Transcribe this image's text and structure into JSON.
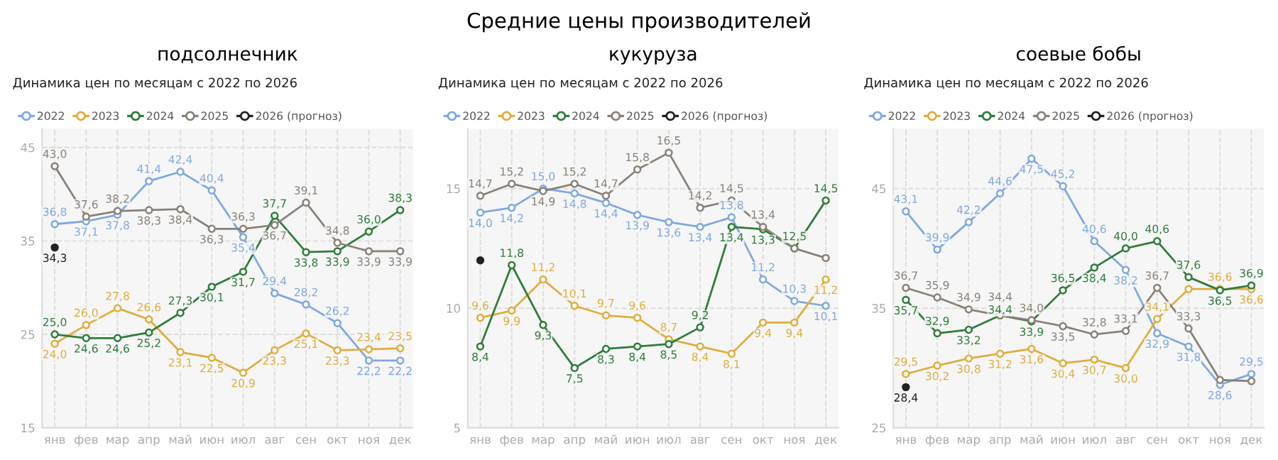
{
  "chart_data": [
    {
      "type": "line",
      "title": "подсолнечник",
      "subtitle": "Динамика цен по месяцам с 2022 по 2026",
      "annotations": [
        "Средние цены производителей"
      ],
      "categories": [
        "янв",
        "фев",
        "мар",
        "апр",
        "май",
        "июн",
        "июл",
        "авг",
        "сен",
        "окт",
        "ноя",
        "дек"
      ],
      "ylim": [
        15,
        47
      ],
      "yticks": [
        15,
        25,
        35,
        45
      ],
      "grid": true,
      "legend": "top left",
      "marker": "circle",
      "line_style": "solid",
      "series": [
        {
          "name": "2022",
          "color": "#7fa9e0",
          "values": [
            36.8,
            37.1,
            37.8,
            41.4,
            42.4,
            40.4,
            35.4,
            29.4,
            28.2,
            26.2,
            22.2,
            22.2
          ],
          "value_labels": [
            "36,8",
            "37,1",
            "37,8",
            "41,4",
            "42,4",
            "40,4",
            "35,4",
            "29,4",
            "28,2",
            "26,2",
            "22,2",
            "22,2"
          ]
        },
        {
          "name": "2023",
          "color": "#e0ad3e",
          "values": [
            24.0,
            26.0,
            27.8,
            26.6,
            23.1,
            22.5,
            20.9,
            23.3,
            25.1,
            23.3,
            23.4,
            23.5
          ],
          "value_labels": [
            "24,0",
            "26,0",
            "27,8",
            "26,6",
            "23,1",
            "22,5",
            "20,9",
            "23,3",
            "25,1",
            "23,3",
            "23,4",
            "23,5"
          ]
        },
        {
          "name": "2024",
          "color": "#2e7d3a",
          "values": [
            25.0,
            24.6,
            24.6,
            25.2,
            27.3,
            30.1,
            31.7,
            37.7,
            33.8,
            33.9,
            36.0,
            38.3
          ],
          "value_labels": [
            "25,0",
            "24,6",
            "24,6",
            "25,2",
            "27,3",
            "30,1",
            "31,7",
            "37,7",
            "33,8",
            "33,9",
            "36,0",
            "38,3"
          ]
        },
        {
          "name": "2025",
          "color": "#8a8178",
          "values": [
            43.0,
            37.6,
            38.2,
            38.3,
            38.4,
            36.3,
            36.3,
            36.7,
            39.1,
            34.8,
            33.9,
            33.9
          ],
          "value_labels": [
            "43,0",
            "37,6",
            "38,2",
            "38,3",
            "38,4",
            "36,3",
            "36,3",
            "36,7",
            "39,1",
            "34,8",
            "33,9",
            "33,9"
          ]
        },
        {
          "name": "2026 (прогноз)",
          "color": "#222222",
          "values": [
            34.3,
            null,
            null,
            null,
            null,
            null,
            null,
            null,
            null,
            null,
            null,
            null
          ],
          "value_labels": [
            "34,3",
            null,
            null,
            null,
            null,
            null,
            null,
            null,
            null,
            null,
            null,
            null
          ]
        }
      ]
    },
    {
      "type": "line",
      "title": "кукуруза",
      "subtitle": "Динамика цен по месяцам с 2022 по 2026",
      "categories": [
        "янв",
        "фев",
        "мар",
        "апр",
        "май",
        "июн",
        "июл",
        "авг",
        "сен",
        "окт",
        "ноя",
        "дек"
      ],
      "ylim": [
        5,
        17.5
      ],
      "yticks": [
        5,
        10,
        15
      ],
      "grid": true,
      "legend": "top left",
      "marker": "circle",
      "line_style": "solid",
      "series": [
        {
          "name": "2022",
          "color": "#7fa9e0",
          "values": [
            14.0,
            14.2,
            15.0,
            14.8,
            14.4,
            13.9,
            13.6,
            13.4,
            13.8,
            11.2,
            10.3,
            10.1
          ],
          "value_labels": [
            "14,0",
            "14,2",
            "15,0",
            "14,8",
            "14,4",
            "13,9",
            "13,6",
            "13,4",
            "13,8",
            "11,2",
            "10,3",
            "10,1"
          ]
        },
        {
          "name": "2023",
          "color": "#e0ad3e",
          "values": [
            9.6,
            9.9,
            11.2,
            10.1,
            9.7,
            9.6,
            8.7,
            8.4,
            8.1,
            9.4,
            9.4,
            11.2
          ],
          "value_labels": [
            "9,6",
            "9,9",
            "11,2",
            "10,1",
            "9,7",
            "9,6",
            "8,7",
            "8,4",
            "8,1",
            "9,4",
            "9,4",
            "11,2"
          ]
        },
        {
          "name": "2024",
          "color": "#2e7d3a",
          "values": [
            8.4,
            11.8,
            9.3,
            7.5,
            8.3,
            8.4,
            8.5,
            9.2,
            13.4,
            13.3,
            12.5,
            14.5
          ],
          "value_labels": [
            "8,4",
            "11,8",
            "9,3",
            "7,5",
            "8,3",
            "8,4",
            "8,5",
            "9,2",
            "13,4",
            "13,3",
            "12,5",
            "14,5"
          ]
        },
        {
          "name": "2025",
          "color": "#8a8178",
          "values": [
            14.7,
            15.2,
            14.9,
            15.2,
            14.7,
            15.8,
            16.5,
            14.2,
            14.5,
            13.4,
            12.5,
            12.1
          ],
          "value_labels": [
            "14,7",
            "15,2",
            "14,9",
            "15,2",
            "14,7",
            "15,8",
            "16,5",
            "14,2",
            "14,5",
            "13,4",
            null,
            null
          ]
        },
        {
          "name": "2026 (прогноз)",
          "color": "#222222",
          "values": [
            12.0,
            null,
            null,
            null,
            null,
            null,
            null,
            null,
            null,
            null,
            null,
            null
          ],
          "value_labels": [
            null,
            null,
            null,
            null,
            null,
            null,
            null,
            null,
            null,
            null,
            null,
            null
          ]
        }
      ]
    },
    {
      "type": "line",
      "title": "соевые бобы",
      "subtitle": "Динамика цен по месяцам с 2022 по 2026",
      "categories": [
        "янв",
        "фев",
        "мар",
        "апр",
        "май",
        "июн",
        "июл",
        "авг",
        "сен",
        "окт",
        "ноя",
        "дек"
      ],
      "ylim": [
        25,
        50
      ],
      "yticks": [
        25,
        35,
        45
      ],
      "grid": true,
      "legend": "top left",
      "marker": "circle",
      "line_style": "solid",
      "series": [
        {
          "name": "2022",
          "color": "#7fa9e0",
          "values": [
            43.1,
            39.9,
            42.2,
            44.6,
            47.5,
            45.2,
            40.6,
            38.2,
            32.9,
            31.8,
            28.6,
            29.5
          ],
          "value_labels": [
            "43,1",
            "39,9",
            "42,2",
            "44,6",
            "47,5",
            "45,2",
            "40,6",
            "38,2",
            "32,9",
            "31,8",
            "28,6",
            "29,5"
          ]
        },
        {
          "name": "2023",
          "color": "#e0ad3e",
          "values": [
            29.5,
            30.2,
            30.8,
            31.2,
            31.6,
            30.4,
            30.7,
            30.0,
            34.1,
            36.6,
            36.6,
            36.6
          ],
          "value_labels": [
            "29,5",
            "30,2",
            "30,8",
            "31,2",
            "31,6",
            "30,4",
            "30,7",
            "30,0",
            "34,1",
            null,
            "36,6",
            "36,6"
          ]
        },
        {
          "name": "2024",
          "color": "#2e7d3a",
          "values": [
            35.7,
            32.9,
            33.2,
            34.4,
            33.9,
            36.5,
            38.4,
            40.0,
            40.6,
            37.6,
            36.5,
            36.9
          ],
          "value_labels": [
            "35,7",
            "32,9",
            "33,2",
            "34,4",
            "33,9",
            "36,5",
            "38,4",
            "40,0",
            "40,6",
            "37,6",
            "36,5",
            "36,9"
          ]
        },
        {
          "name": "2025",
          "color": "#8a8178",
          "values": [
            36.7,
            35.9,
            34.9,
            34.4,
            34.0,
            33.5,
            32.8,
            33.1,
            36.7,
            33.3,
            29.0,
            28.9
          ],
          "value_labels": [
            "36,7",
            "35,9",
            "34,9",
            "34,4",
            "34,0",
            "33,5",
            "32,8",
            "33,1",
            "36,7",
            "33,3",
            null,
            null
          ]
        },
        {
          "name": "2026 (прогноз)",
          "color": "#222222",
          "values": [
            28.4,
            null,
            null,
            null,
            null,
            null,
            null,
            null,
            null,
            null,
            null,
            null
          ],
          "value_labels": [
            "28,4",
            null,
            null,
            null,
            null,
            null,
            null,
            null,
            null,
            null,
            null,
            null
          ]
        }
      ]
    }
  ]
}
